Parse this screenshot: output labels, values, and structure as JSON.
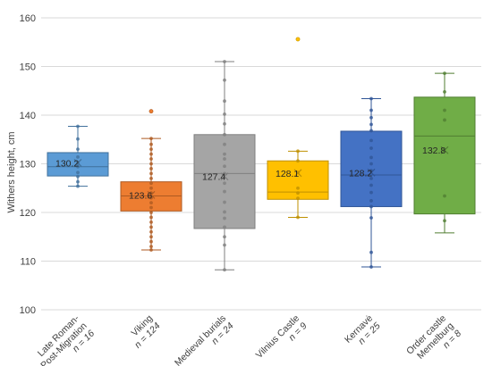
{
  "chart_data": {
    "type": "box",
    "ylabel": "Withers height, cm",
    "ylim": [
      100,
      160
    ],
    "yticks": [
      100,
      110,
      120,
      130,
      140,
      150,
      160
    ],
    "grid": "horizontal",
    "series": [
      {
        "name": "Late Roman–Post-Migration",
        "label_lines": [
          "Late Roman-",
          "Post-Migration"
        ],
        "n_label": "n = 16",
        "color": "#5b9bd5",
        "edge": "#41719c",
        "whisker_low": 125.4,
        "q1": 127.5,
        "median": 129.4,
        "q3": 132.3,
        "whisker_high": 137.7,
        "mean": 130.2,
        "points": [
          125.4,
          126.3,
          127.4,
          128.2,
          129.4,
          130.1,
          131.4,
          133.0,
          135.1,
          137.7
        ],
        "outliers": []
      },
      {
        "name": "Viking",
        "label_lines": [
          "Viking"
        ],
        "n_label": "n = 124",
        "color": "#ed7d31",
        "edge": "#ae5a21",
        "whisker_low": 112.3,
        "q1": 120.3,
        "median": 123.4,
        "q3": 126.3,
        "whisker_high": 135.2,
        "mean": 123.6,
        "points": [
          112.3,
          113.0,
          114.0,
          115.0,
          116.0,
          117.0,
          118.0,
          119.0,
          120.0,
          121.0,
          122.0,
          123.0,
          124.0,
          125.0,
          126.0,
          127.0,
          128.0,
          129.0,
          130.0,
          131.0,
          132.0,
          133.0,
          134.0,
          135.2
        ],
        "outliers": [
          140.8
        ]
      },
      {
        "name": "Medieval burials",
        "label_lines": [
          "Medieval burials"
        ],
        "n_label": "n = 24",
        "color": "#a5a5a5",
        "edge": "#7f7f7f",
        "whisker_low": 108.2,
        "q1": 116.7,
        "median": 128.0,
        "q3": 136.0,
        "whisker_high": 151.0,
        "mean": 127.4,
        "points": [
          108.2,
          113.3,
          115.0,
          117.0,
          118.8,
          120.1,
          122.1,
          124.3,
          126.0,
          128.0,
          129.5,
          131.0,
          132.0,
          134.0,
          136.0,
          138.2,
          140.2,
          142.9,
          147.2,
          151.0
        ],
        "outliers": []
      },
      {
        "name": "Vilnius Castle",
        "label_lines": [
          "Vilnius Castle"
        ],
        "n_label": "n = 9",
        "color": "#ffc000",
        "edge": "#bf9000",
        "whisker_low": 119.0,
        "q1": 122.7,
        "median": 124.2,
        "q3": 130.6,
        "whisker_high": 132.6,
        "mean": 128.1,
        "points": [
          119.0,
          122.9,
          124.0,
          125.0,
          128.2,
          130.6,
          132.6
        ],
        "outliers": [
          155.6
        ]
      },
      {
        "name": "Kernavė",
        "label_lines": [
          "Kernavė"
        ],
        "n_label": "n = 25",
        "color": "#4472c4",
        "edge": "#2f5597",
        "whisker_low": 108.8,
        "q1": 121.2,
        "median": 127.7,
        "q3": 136.7,
        "whisker_high": 143.4,
        "mean": 128.2,
        "points": [
          108.8,
          111.8,
          118.9,
          121.2,
          122.4,
          124.1,
          125.6,
          127.0,
          128.6,
          130.0,
          131.3,
          133.2,
          134.8,
          136.8,
          138.1,
          139.5,
          141.0,
          143.4
        ],
        "outliers": []
      },
      {
        "name": "Order castle Memelburg",
        "label_lines": [
          "Order castle",
          "Memelburg"
        ],
        "n_label": "n = 8",
        "color": "#70ad47",
        "edge": "#507e32",
        "whisker_low": 115.8,
        "q1": 119.7,
        "median": 135.7,
        "q3": 143.7,
        "whisker_high": 148.6,
        "mean": 132.8,
        "points": [
          118.3,
          123.4,
          139.0,
          141.0,
          144.8,
          148.6
        ],
        "outliers": []
      }
    ]
  }
}
